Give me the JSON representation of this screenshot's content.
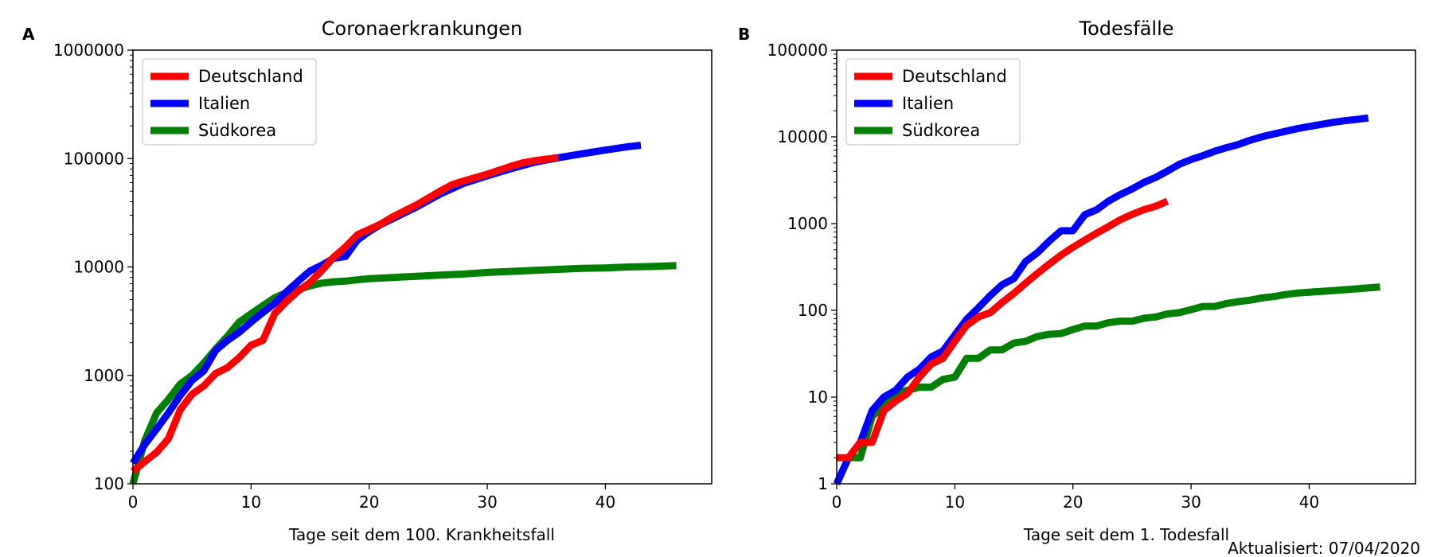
{
  "updated_label": "Aktualisiert: 07/04/2020",
  "colors": {
    "Deutschland": "#ff0000",
    "Italien": "#0000ff",
    "Südkorea": "#008000"
  },
  "chart_data": [
    {
      "panel": "A",
      "type": "line",
      "title": "Coronaerkrankungen",
      "xlabel": "Tage seit dem 100. Krankheitsfall",
      "ylabel": "",
      "yscale": "log",
      "xlim": [
        0,
        49
      ],
      "ylim": [
        100,
        1000000
      ],
      "xticks": [
        0,
        10,
        20,
        30,
        40
      ],
      "yticks": [
        100,
        1000,
        10000,
        100000,
        1000000
      ],
      "legend_position": "top-left",
      "series": [
        {
          "name": "Südkorea",
          "points": [
            [
              0,
              100
            ],
            [
              1,
              250
            ],
            [
              2,
              450
            ],
            [
              3,
              600
            ],
            [
              4,
              830
            ],
            [
              5,
              1000
            ],
            [
              6,
              1300
            ],
            [
              7,
              1750
            ],
            [
              8,
              2300
            ],
            [
              9,
              3100
            ],
            [
              10,
              3700
            ],
            [
              11,
              4400
            ],
            [
              12,
              5200
            ],
            [
              13,
              5800
            ],
            [
              14,
              6200
            ],
            [
              15,
              6700
            ],
            [
              16,
              7100
            ],
            [
              17,
              7300
            ],
            [
              18,
              7400
            ],
            [
              19,
              7600
            ],
            [
              20,
              7800
            ],
            [
              22,
              8000
            ],
            [
              24,
              8200
            ],
            [
              26,
              8400
            ],
            [
              28,
              8600
            ],
            [
              30,
              8900
            ],
            [
              32,
              9100
            ],
            [
              34,
              9300
            ],
            [
              36,
              9500
            ],
            [
              38,
              9700
            ],
            [
              40,
              9800
            ],
            [
              42,
              10000
            ],
            [
              44,
              10100
            ],
            [
              46,
              10300
            ]
          ]
        },
        {
          "name": "Italien",
          "points": [
            [
              0,
              155
            ],
            [
              1,
              230
            ],
            [
              2,
              320
            ],
            [
              3,
              450
            ],
            [
              4,
              650
            ],
            [
              5,
              900
            ],
            [
              6,
              1100
            ],
            [
              7,
              1700
            ],
            [
              8,
              2100
            ],
            [
              9,
              2500
            ],
            [
              10,
              3100
            ],
            [
              11,
              3800
            ],
            [
              12,
              4600
            ],
            [
              13,
              5900
            ],
            [
              14,
              7400
            ],
            [
              15,
              9200
            ],
            [
              16,
              10400
            ],
            [
              17,
              12000
            ],
            [
              18,
              12500
            ],
            [
              19,
              17700
            ],
            [
              20,
              21200
            ],
            [
              21,
              24700
            ],
            [
              22,
              27900
            ],
            [
              24,
              35700
            ],
            [
              26,
              47000
            ],
            [
              28,
              59100
            ],
            [
              30,
              69200
            ],
            [
              32,
              80500
            ],
            [
              34,
              92500
            ],
            [
              36,
              101700
            ],
            [
              38,
              110600
            ],
            [
              40,
              119800
            ],
            [
              42,
              128900
            ],
            [
              43,
              132500
            ]
          ]
        },
        {
          "name": "Deutschland",
          "points": [
            [
              0,
              130
            ],
            [
              1,
              160
            ],
            [
              2,
              195
            ],
            [
              3,
              260
            ],
            [
              4,
              480
            ],
            [
              5,
              670
            ],
            [
              6,
              800
            ],
            [
              7,
              1040
            ],
            [
              8,
              1180
            ],
            [
              9,
              1460
            ],
            [
              10,
              1900
            ],
            [
              11,
              2100
            ],
            [
              12,
              3700
            ],
            [
              13,
              4800
            ],
            [
              14,
              6000
            ],
            [
              15,
              7200
            ],
            [
              16,
              9300
            ],
            [
              17,
              12300
            ],
            [
              18,
              15300
            ],
            [
              19,
              19800
            ],
            [
              20,
              22200
            ],
            [
              21,
              24900
            ],
            [
              22,
              29000
            ],
            [
              24,
              37300
            ],
            [
              26,
              50000
            ],
            [
              27,
              57300
            ],
            [
              28,
              62100
            ],
            [
              30,
              71800
            ],
            [
              32,
              84800
            ],
            [
              33,
              91200
            ],
            [
              34,
              95400
            ],
            [
              36,
              102000
            ]
          ]
        }
      ]
    },
    {
      "panel": "B",
      "type": "line",
      "title": "Todesfälle",
      "xlabel": "Tage seit dem 1. Todesfall",
      "ylabel": "",
      "yscale": "log",
      "xlim": [
        0,
        49
      ],
      "ylim": [
        1,
        100000
      ],
      "xticks": [
        0,
        10,
        20,
        30,
        40
      ],
      "yticks": [
        1,
        10,
        100,
        1000,
        10000,
        100000
      ],
      "legend_position": "top-left",
      "series": [
        {
          "name": "Südkorea",
          "points": [
            [
              0,
              1
            ],
            [
              1,
              2
            ],
            [
              2,
              2
            ],
            [
              3,
              6
            ],
            [
              4,
              8
            ],
            [
              5,
              11
            ],
            [
              6,
              12
            ],
            [
              7,
              13
            ],
            [
              8,
              13
            ],
            [
              9,
              16
            ],
            [
              10,
              17
            ],
            [
              11,
              28
            ],
            [
              12,
              28
            ],
            [
              13,
              35
            ],
            [
              14,
              35
            ],
            [
              15,
              42
            ],
            [
              16,
              44
            ],
            [
              17,
              50
            ],
            [
              18,
              53
            ],
            [
              19,
              54
            ],
            [
              20,
              60
            ],
            [
              21,
              66
            ],
            [
              22,
              66
            ],
            [
              23,
              72
            ],
            [
              24,
              75
            ],
            [
              25,
              75
            ],
            [
              26,
              81
            ],
            [
              27,
              84
            ],
            [
              28,
              91
            ],
            [
              29,
              94
            ],
            [
              30,
              102
            ],
            [
              31,
              111
            ],
            [
              32,
              111
            ],
            [
              33,
              120
            ],
            [
              34,
              126
            ],
            [
              35,
              131
            ],
            [
              36,
              139
            ],
            [
              37,
              144
            ],
            [
              38,
              152
            ],
            [
              39,
              158
            ],
            [
              40,
              162
            ],
            [
              42,
              169
            ],
            [
              44,
              177
            ],
            [
              46,
              186
            ]
          ]
        },
        {
          "name": "Italien",
          "points": [
            [
              0,
              1
            ],
            [
              1,
              2
            ],
            [
              2,
              3
            ],
            [
              3,
              7
            ],
            [
              4,
              10
            ],
            [
              5,
              12
            ],
            [
              6,
              17
            ],
            [
              7,
              21
            ],
            [
              8,
              29
            ],
            [
              9,
              34
            ],
            [
              10,
              52
            ],
            [
              11,
              79
            ],
            [
              12,
              107
            ],
            [
              13,
              148
            ],
            [
              14,
              197
            ],
            [
              15,
              233
            ],
            [
              16,
              366
            ],
            [
              17,
              463
            ],
            [
              18,
              631
            ],
            [
              19,
              827
            ],
            [
              20,
              827
            ],
            [
              21,
              1266
            ],
            [
              22,
              1441
            ],
            [
              23,
              1809
            ],
            [
              24,
              2158
            ],
            [
              25,
              2503
            ],
            [
              26,
              2978
            ],
            [
              27,
              3405
            ],
            [
              28,
              4032
            ],
            [
              29,
              4825
            ],
            [
              30,
              5476
            ],
            [
              31,
              6077
            ],
            [
              32,
              6820
            ],
            [
              33,
              7503
            ],
            [
              34,
              8165
            ],
            [
              35,
              9134
            ],
            [
              36,
              10023
            ],
            [
              37,
              10779
            ],
            [
              38,
              11591
            ],
            [
              39,
              12428
            ],
            [
              40,
              13155
            ],
            [
              41,
              13915
            ],
            [
              42,
              14681
            ],
            [
              43,
              15362
            ],
            [
              44,
              15887
            ],
            [
              45,
              16523
            ]
          ]
        },
        {
          "name": "Deutschland",
          "points": [
            [
              0,
              2
            ],
            [
              1,
              2
            ],
            [
              2,
              3
            ],
            [
              3,
              3
            ],
            [
              4,
              7
            ],
            [
              5,
              9
            ],
            [
              6,
              11
            ],
            [
              7,
              17
            ],
            [
              8,
              24
            ],
            [
              9,
              28
            ],
            [
              10,
              44
            ],
            [
              11,
              67
            ],
            [
              12,
              84
            ],
            [
              13,
              94
            ],
            [
              14,
              123
            ],
            [
              15,
              157
            ],
            [
              16,
              206
            ],
            [
              17,
              267
            ],
            [
              18,
              342
            ],
            [
              19,
              433
            ],
            [
              20,
              533
            ],
            [
              21,
              645
            ],
            [
              22,
              775
            ],
            [
              23,
              920
            ],
            [
              24,
              1107
            ],
            [
              25,
              1275
            ],
            [
              26,
              1444
            ],
            [
              27,
              1584
            ],
            [
              28,
              1810
            ]
          ]
        }
      ]
    }
  ]
}
